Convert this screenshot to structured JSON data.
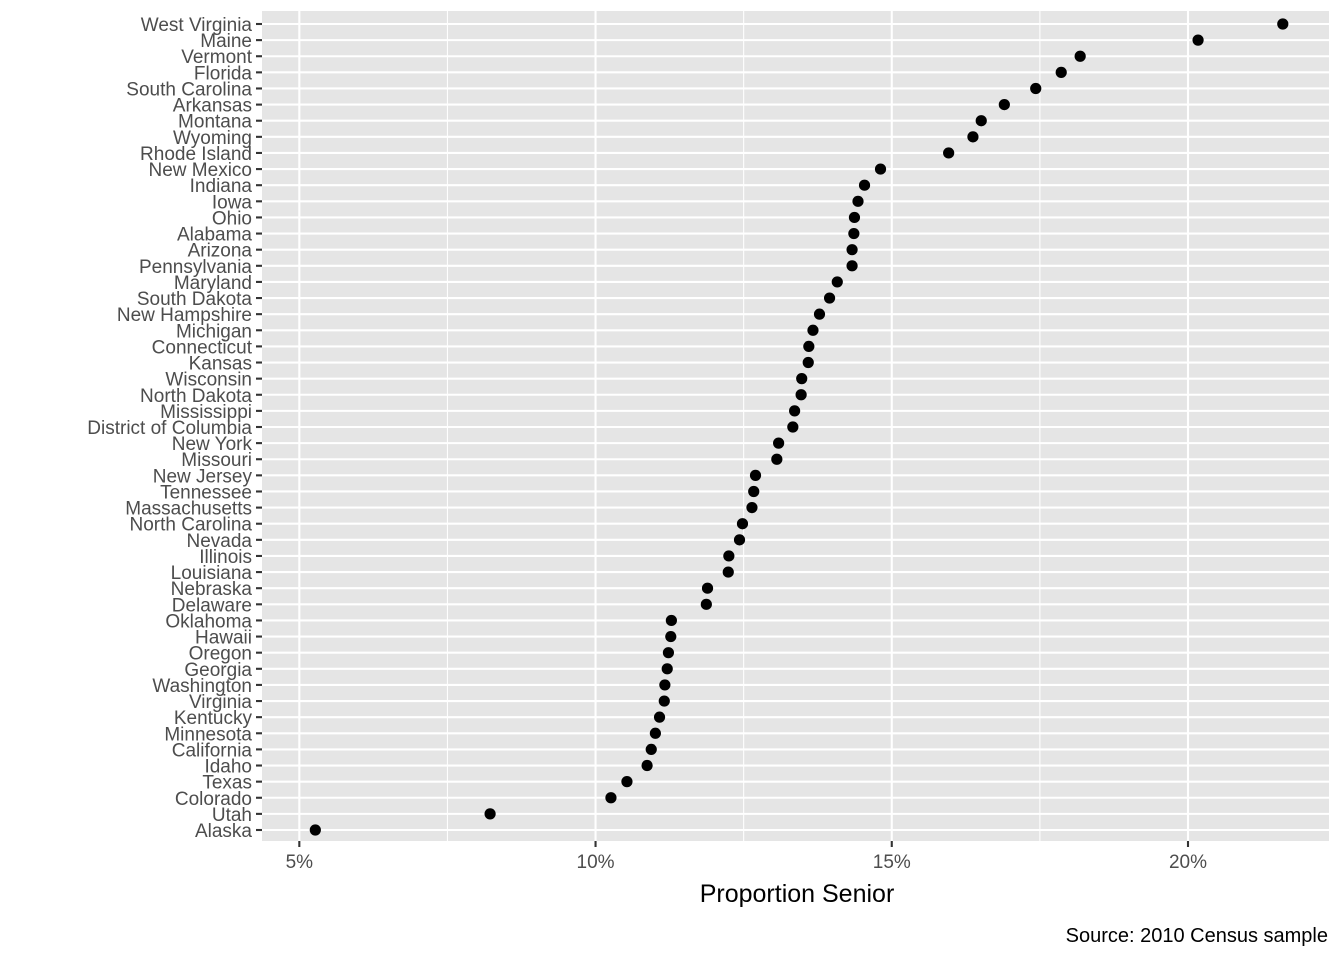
{
  "chart_data": {
    "type": "scatter",
    "title": "",
    "xlabel": "Proportion Senior",
    "ylabel": "",
    "caption": "Source: 2010 Census sample",
    "xlim": [
      0.0437,
      0.2238
    ],
    "x_ticks": [
      0.05,
      0.1,
      0.15,
      0.2
    ],
    "x_tick_labels": [
      "5%",
      "10%",
      "15%",
      "20%"
    ],
    "grid": true,
    "legend": "none",
    "point_color": "#000000",
    "panel_color": "#e5e5e5",
    "points": [
      {
        "state": "West Virginia",
        "value": 0.216
      },
      {
        "state": "Maine",
        "value": 0.2017
      },
      {
        "state": "Vermont",
        "value": 0.1818
      },
      {
        "state": "Florida",
        "value": 0.1786
      },
      {
        "state": "South Carolina",
        "value": 0.1743
      },
      {
        "state": "Arkansas",
        "value": 0.169
      },
      {
        "state": "Montana",
        "value": 0.1651
      },
      {
        "state": "Wyoming",
        "value": 0.1637
      },
      {
        "state": "Rhode Island",
        "value": 0.1596
      },
      {
        "state": "New Mexico",
        "value": 0.1481
      },
      {
        "state": "Indiana",
        "value": 0.1454
      },
      {
        "state": "Iowa",
        "value": 0.1443
      },
      {
        "state": "Ohio",
        "value": 0.1437
      },
      {
        "state": "Alabama",
        "value": 0.1436
      },
      {
        "state": "Arizona",
        "value": 0.1433
      },
      {
        "state": "Pennsylvania",
        "value": 0.1433
      },
      {
        "state": "Maryland",
        "value": 0.1408
      },
      {
        "state": "South Dakota",
        "value": 0.1395
      },
      {
        "state": "New Hampshire",
        "value": 0.1378
      },
      {
        "state": "Michigan",
        "value": 0.1367
      },
      {
        "state": "Connecticut",
        "value": 0.136
      },
      {
        "state": "Kansas",
        "value": 0.1359
      },
      {
        "state": "Wisconsin",
        "value": 0.1348
      },
      {
        "state": "North Dakota",
        "value": 0.1347
      },
      {
        "state": "Mississippi",
        "value": 0.1336
      },
      {
        "state": "District of Columbia",
        "value": 0.1333
      },
      {
        "state": "New York",
        "value": 0.1309
      },
      {
        "state": "Missouri",
        "value": 0.1306
      },
      {
        "state": "New Jersey",
        "value": 0.127
      },
      {
        "state": "Tennessee",
        "value": 0.1267
      },
      {
        "state": "Massachusetts",
        "value": 0.1264
      },
      {
        "state": "North Carolina",
        "value": 0.1248
      },
      {
        "state": "Nevada",
        "value": 0.1243
      },
      {
        "state": "Illinois",
        "value": 0.1225
      },
      {
        "state": "Louisiana",
        "value": 0.1224
      },
      {
        "state": "Nebraska",
        "value": 0.1189
      },
      {
        "state": "Delaware",
        "value": 0.1187
      },
      {
        "state": "Oklahoma",
        "value": 0.1128
      },
      {
        "state": "Hawaii",
        "value": 0.1127
      },
      {
        "state": "Oregon",
        "value": 0.1123
      },
      {
        "state": "Georgia",
        "value": 0.1121
      },
      {
        "state": "Washington",
        "value": 0.1117
      },
      {
        "state": "Virginia",
        "value": 0.1116
      },
      {
        "state": "Kentucky",
        "value": 0.1108
      },
      {
        "state": "Minnesota",
        "value": 0.1101
      },
      {
        "state": "California",
        "value": 0.1094
      },
      {
        "state": "Idaho",
        "value": 0.1087
      },
      {
        "state": "Texas",
        "value": 0.1053
      },
      {
        "state": "Colorado",
        "value": 0.1026
      },
      {
        "state": "Utah",
        "value": 0.0822
      },
      {
        "state": "Alaska",
        "value": 0.0527
      }
    ]
  }
}
